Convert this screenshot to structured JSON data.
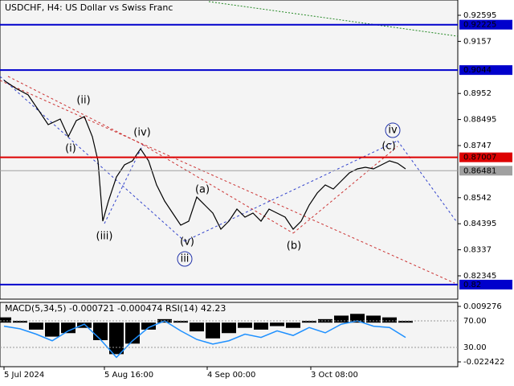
{
  "chart_data": [
    {
      "type": "line",
      "title": "USDCHF, H4:  US Dollar vs Swiss Franc",
      "x": [
        5,
        20,
        35,
        50,
        60,
        75,
        85,
        95,
        105,
        115,
        122,
        128,
        135,
        145,
        155,
        165,
        175,
        185,
        195,
        205,
        215,
        225,
        235,
        245,
        255,
        265,
        275,
        285,
        295,
        305,
        315,
        325,
        335,
        345,
        355,
        365,
        375,
        385,
        395,
        405,
        415,
        425,
        435,
        445,
        455,
        465,
        475,
        485,
        495,
        505
      ],
      "series": [
        {
          "color": "#000000",
          "values": [
            0.90033,
            0.89716,
            0.89463,
            0.88767,
            0.88293,
            0.88514,
            0.87818,
            0.88451,
            0.88609,
            0.87818,
            0.86869,
            0.84496,
            0.85287,
            0.86236,
            0.86711,
            0.86869,
            0.87343,
            0.86869,
            0.8592,
            0.85287,
            0.84813,
            0.84338,
            0.84496,
            0.85445,
            0.85129,
            0.84813,
            0.8418,
            0.84496,
            0.84971,
            0.84654,
            0.84813,
            0.84496,
            0.84971,
            0.84813,
            0.84654,
            0.8418,
            0.84496,
            0.85129,
            0.85604,
            0.8592,
            0.85762,
            0.86078,
            0.86394,
            0.86553,
            0.86616,
            0.86553,
            0.86711,
            0.86869,
            0.86774,
            0.86553
          ]
        }
      ],
      "xlim": [
        0,
        570
      ],
      "ylim": [
        0.81428,
        0.93196
      ],
      "yticks": [
        0.92595,
        0.9157,
        0.8952,
        0.88495,
        0.8747,
        0.8542,
        0.84395,
        0.8337,
        0.82345
      ],
      "levels": [
        {
          "value": 0.92225,
          "color": "#0000cc"
        },
        {
          "value": 0.9044,
          "color": "#0000cc"
        },
        {
          "value": 0.87007,
          "color": "#dd0000"
        },
        {
          "value": 0.86481,
          "color": "#a0a0a0"
        },
        {
          "value": 0.82,
          "color": "#0000cc"
        }
      ],
      "annotations": [
        {
          "text": "(i)",
          "color": "#dd2222"
        },
        {
          "text": "(ii)",
          "color": "#dd2222"
        },
        {
          "text": "(iii)",
          "color": "#dd2222"
        },
        {
          "text": "(iv)",
          "color": "#dd2222"
        },
        {
          "text": "(v)",
          "color": "#dd2222"
        },
        {
          "text": "iii",
          "color": "#2233aa"
        },
        {
          "text": "(a)",
          "color": "#dd2222"
        },
        {
          "text": "(b)",
          "color": "#dd2222"
        },
        {
          "text": "(c)",
          "color": "#dd2222"
        },
        {
          "text": "iv",
          "color": "#2233aa"
        }
      ]
    },
    {
      "type": "indicator",
      "title": "MACD(5,34,5) -0.000721 -0.000474 RSI(14) 42.23",
      "x": [
        5,
        25,
        45,
        65,
        85,
        105,
        125,
        145,
        165,
        185,
        205,
        225,
        245,
        265,
        285,
        305,
        325,
        345,
        365,
        385,
        405,
        425,
        445,
        465,
        485,
        505
      ],
      "series": [
        {
          "color": "#000000",
          "axis": "y2",
          "values": [
            0.003,
            0.001,
            -0.004,
            -0.008,
            -0.006,
            -0.003,
            -0.01,
            -0.018,
            -0.012,
            -0.004,
            0.002,
            0.001,
            -0.005,
            -0.009,
            -0.006,
            -0.003,
            -0.004,
            -0.002,
            -0.003,
            0.001,
            0.002,
            0.004,
            0.005,
            0.004,
            0.003,
            0.001
          ]
        },
        {
          "color": "#1e90ff",
          "values": [
            62,
            58,
            50,
            40,
            55,
            65,
            42,
            15,
            40,
            60,
            70,
            55,
            42,
            35,
            40,
            50,
            45,
            55,
            48,
            60,
            52,
            65,
            70,
            62,
            60,
            45
          ]
        }
      ],
      "xlim": [
        0,
        570
      ],
      "ylim": [
        0.9,
        97.9
      ],
      "yticks": [
        {
          "value": 70,
          "label": "70.00"
        },
        {
          "value": 30,
          "label": "30.00"
        }
      ],
      "y2lim": [
        -0.02518,
        0.01157
      ],
      "y2ticks": [
        0.009276,
        -0.022422
      ],
      "xticks": [
        {
          "value": 5,
          "label": "5 Jul 2024"
        },
        {
          "value": 130,
          "label": "5 Aug 16:00"
        },
        {
          "value": 258,
          "label": "4 Sep 00:00"
        },
        {
          "value": 387,
          "label": "3 Oct 08:00"
        }
      ]
    }
  ]
}
